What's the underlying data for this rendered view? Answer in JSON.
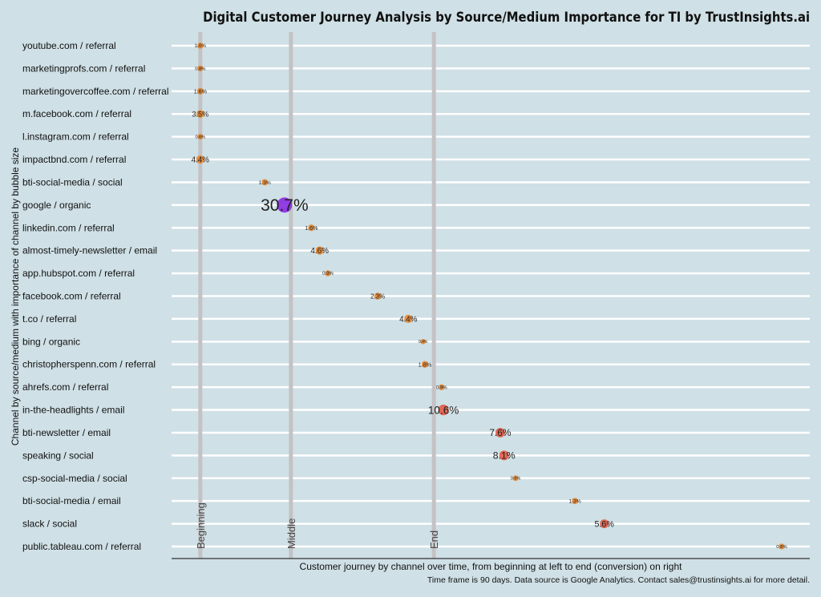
{
  "chart_data": {
    "type": "scatter",
    "title": "Digital Customer Journey Analysis by Source/Medium Importance for TI by TrustInsights.ai",
    "xlabel": "Customer journey by channel over time, from beginning at left to end (conversion) on right",
    "ylabel": "Channel by source/medium with importance of channel by bubble size",
    "caption": "Time frame is 90 days. Data source is Google Analytics. Contact sales@trustinsights.ai for more detail.",
    "xlim": [
      0,
      100
    ],
    "grid": true,
    "markers": [
      {
        "label": "Beginning",
        "x": 4.5
      },
      {
        "label": "Middle",
        "x": 18.7
      },
      {
        "label": "End",
        "x": 41.1
      }
    ],
    "colors": {
      "small": "#e8862c",
      "medium": "#e25b45",
      "largest": "#8a2be2",
      "background": "#cfe0e6"
    },
    "points": [
      {
        "channel": "youtube.com / referral",
        "x": 4.5,
        "value": 1.0,
        "label": "1.0%"
      },
      {
        "channel": "marketingprofs.com / referral",
        "x": 4.5,
        "value": 0.8,
        "label": "0.8%"
      },
      {
        "channel": "marketingovercoffee.com / referral",
        "x": 4.5,
        "value": 1.6,
        "label": "1.6%"
      },
      {
        "channel": "m.facebook.com / referral",
        "x": 4.5,
        "value": 3.5,
        "label": "3.5%"
      },
      {
        "channel": "l.instagram.com / referral",
        "x": 4.5,
        "value": 0.6,
        "label": "0.6%"
      },
      {
        "channel": "impactbnd.com / referral",
        "x": 4.5,
        "value": 4.4,
        "label": "4.4%"
      },
      {
        "channel": "bti-social-media / social",
        "x": 14.6,
        "value": 1.3,
        "label": "1.3%"
      },
      {
        "channel": "google / organic",
        "x": 17.7,
        "value": 30.7,
        "label": "30.7%"
      },
      {
        "channel": "linkedin.com / referral",
        "x": 21.9,
        "value": 1.6,
        "label": "1.6%"
      },
      {
        "channel": "almost-timely-newsletter / email",
        "x": 23.2,
        "value": 4.6,
        "label": "4.6%"
      },
      {
        "channel": "app.hubspot.com / referral",
        "x": 24.5,
        "value": 0.9,
        "label": "0.9%"
      },
      {
        "channel": "facebook.com / referral",
        "x": 32.3,
        "value": 2.3,
        "label": "2.3%"
      },
      {
        "channel": "t.co / referral",
        "x": 37.1,
        "value": 4.4,
        "label": "4.4%"
      },
      {
        "channel": "bing / organic",
        "x": 39.4,
        "value": 0.4,
        "label": "0.4%"
      },
      {
        "channel": "christopherspenn.com / referral",
        "x": 39.7,
        "value": 1.8,
        "label": "1.8%"
      },
      {
        "channel": "ahrefs.com / referral",
        "x": 42.3,
        "value": 0.9,
        "label": "0.9%"
      },
      {
        "channel": "in-the-headlights / email",
        "x": 42.6,
        "value": 10.6,
        "label": "10.6%"
      },
      {
        "channel": "bti-newsletter / email",
        "x": 51.5,
        "value": 7.6,
        "label": "7.6%"
      },
      {
        "channel": "speaking / social",
        "x": 52.1,
        "value": 8.1,
        "label": "8.1%"
      },
      {
        "channel": "csp-social-media / social",
        "x": 53.9,
        "value": 0.6,
        "label": "0.6%"
      },
      {
        "channel": "bti-social-media / email",
        "x": 63.2,
        "value": 1.3,
        "label": "1.3%"
      },
      {
        "channel": "slack / social",
        "x": 67.8,
        "value": 5.6,
        "label": "5.6%"
      },
      {
        "channel": "public.tableau.com / referral",
        "x": 95.6,
        "value": 0.8,
        "label": "0.8%"
      }
    ]
  }
}
